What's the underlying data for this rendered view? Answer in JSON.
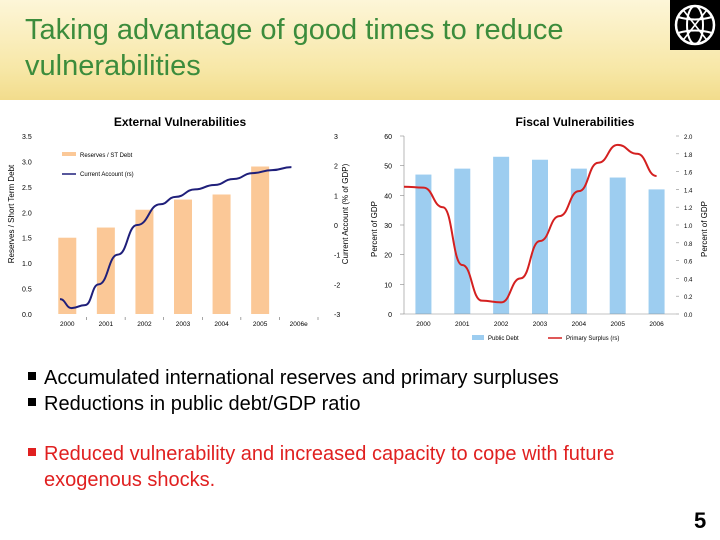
{
  "slide": {
    "title": "Taking advantage of good times to reduce\nvulnerabilities",
    "page_number": "5",
    "logo_icon": "world-bank-globe-icon",
    "colors": {
      "title": "#3c8c3c",
      "bar": "#fbc897",
      "bar_blue": "#9dcdf0",
      "line_navy": "#1f1f7a",
      "line_red": "#d42020",
      "red_text": "#e02020"
    }
  },
  "bullets": [
    {
      "text": "Accumulated international reserves and primary surpluses"
    },
    {
      "text": "Reductions in public debt/GDP ratio"
    }
  ],
  "bullet_red": {
    "text": "Reduced vulnerability and increased capacity to cope with future exogenous shocks."
  },
  "chart_data": [
    {
      "type": "bar",
      "title": "External Vulnerabilities",
      "categories": [
        "2000",
        "2001",
        "2002",
        "2003",
        "2004",
        "2005",
        "2006e"
      ],
      "ylabel": "Reserves / Short Term Debt",
      "ylim": [
        0,
        3.5
      ],
      "yticks": [
        "0.0",
        "0.5",
        "1.0",
        "1.5",
        "2.0",
        "2.5",
        "3.0",
        "3.5"
      ],
      "y2label": "Current Account (% of GDP)",
      "y2ticks": [
        "-3",
        "-2",
        "-1",
        "0",
        "1",
        "2",
        "3"
      ],
      "legend": [
        "Reserves / ST Debt",
        "Current Account (rs)"
      ],
      "series": [
        {
          "name": "Reserves / ST Debt",
          "type": "bar",
          "values": [
            1.5,
            1.7,
            2.05,
            2.25,
            2.35,
            2.9,
            null
          ]
        },
        {
          "name": "Current Account (rs)",
          "type": "line",
          "axis": "right",
          "x": [
            0,
            0.3,
            0.65,
            1.0,
            1.5,
            2.0,
            2.6,
            3.0,
            3.5,
            4.0,
            4.5,
            5.0,
            5.5,
            6.0
          ],
          "values": [
            -2.5,
            -2.8,
            -2.7,
            -2.0,
            -1.0,
            0.0,
            0.7,
            0.95,
            1.2,
            1.35,
            1.55,
            1.75,
            1.85,
            1.95
          ]
        }
      ]
    },
    {
      "type": "bar",
      "title": "Fiscal Vulnerabilities",
      "categories": [
        "2000",
        "2001",
        "2002",
        "2003",
        "2004",
        "2005",
        "2006"
      ],
      "ylabel": "Percent of GDP",
      "ylim": [
        0,
        60
      ],
      "yticks": [
        "0",
        "10",
        "20",
        "30",
        "40",
        "50",
        "60"
      ],
      "y2label": "Percent of GDP",
      "y2lim": [
        0.0,
        2.0
      ],
      "y2ticks": [
        "0.0",
        "0.2",
        "0.4",
        "0.6",
        "0.8",
        "1.0",
        "1.2",
        "1.4",
        "1.6",
        "1.8",
        "2.0"
      ],
      "legend": [
        "Public Debt",
        "Primary Surplus (rs)"
      ],
      "series": [
        {
          "name": "Public Debt",
          "type": "bar",
          "values": [
            47,
            49,
            53,
            52,
            49,
            46,
            42
          ]
        },
        {
          "name": "Primary Surplus (rs)",
          "type": "line",
          "axis": "right",
          "x": [
            -0.5,
            0,
            0.5,
            1.0,
            1.5,
            2.0,
            2.5,
            3.0,
            3.5,
            4.0,
            4.5,
            5.0,
            5.5,
            6.0
          ],
          "values": [
            1.43,
            1.42,
            1.2,
            0.55,
            0.15,
            0.13,
            0.4,
            0.82,
            1.1,
            1.38,
            1.7,
            1.9,
            1.8,
            1.55
          ]
        }
      ]
    }
  ]
}
